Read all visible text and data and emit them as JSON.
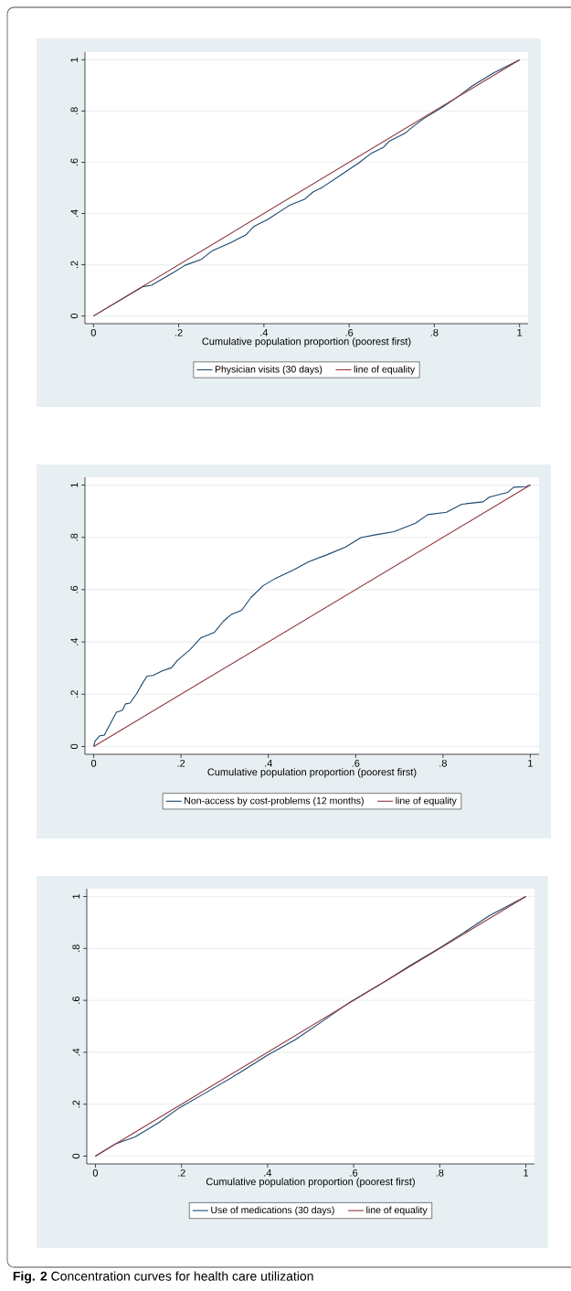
{
  "chart_data": [
    {
      "type": "line",
      "xlabel": "Cumulative population proportion (poorest first)",
      "xlim": [
        -0.02,
        1.02
      ],
      "ylim": [
        -0.03,
        1.03
      ],
      "xticks": [
        0,
        {
          "value": 0.2,
          "label": ".2"
        },
        {
          "value": 0.4,
          "label": ".4"
        },
        {
          "value": 0.6,
          "label": ".6"
        },
        {
          "value": 0.8,
          "label": ".8"
        },
        1
      ],
      "yticks": [
        0,
        {
          "value": 0.2,
          "label": ".2"
        },
        {
          "value": 0.4,
          "label": ".4"
        },
        {
          "value": 0.6,
          "label": ".6"
        },
        {
          "value": 0.8,
          "label": ".8"
        },
        1
      ],
      "grid": "y",
      "legend": "bottom",
      "series": [
        {
          "name": "Physician visits (30 days)",
          "color": "#1a476f",
          "x": [
            0,
            0.115,
            0.136,
            0.186,
            0.215,
            0.254,
            0.279,
            0.323,
            0.358,
            0.376,
            0.409,
            0.459,
            0.495,
            0.516,
            0.538,
            0.581,
            0.624,
            0.652,
            0.681,
            0.695,
            0.731,
            0.753,
            0.774,
            0.824,
            0.86,
            0.889,
            0.939,
            1
          ],
          "values": [
            0,
            0.114,
            0.12,
            0.168,
            0.198,
            0.222,
            0.255,
            0.287,
            0.317,
            0.349,
            0.377,
            0.431,
            0.455,
            0.485,
            0.503,
            0.551,
            0.599,
            0.635,
            0.659,
            0.683,
            0.713,
            0.743,
            0.769,
            0.82,
            0.862,
            0.898,
            0.949,
            1
          ]
        },
        {
          "name": "line of equality",
          "color": "#90353b",
          "x": [
            0,
            1
          ],
          "values": [
            0,
            1
          ]
        }
      ]
    },
    {
      "type": "line",
      "xlabel": "Cumulative population proportion (poorest first)",
      "xlim": [
        -0.02,
        1.02
      ],
      "ylim": [
        -0.03,
        1.03
      ],
      "xticks": [
        0,
        {
          "value": 0.2,
          "label": ".2"
        },
        {
          "value": 0.4,
          "label": ".4"
        },
        {
          "value": 0.6,
          "label": ".6"
        },
        {
          "value": 0.8,
          "label": ".8"
        },
        1
      ],
      "yticks": [
        0,
        {
          "value": 0.2,
          "label": ".2"
        },
        {
          "value": 0.4,
          "label": ".4"
        },
        {
          "value": 0.6,
          "label": ".6"
        },
        {
          "value": 0.8,
          "label": ".8"
        },
        1
      ],
      "grid": "y",
      "legend": "bottom",
      "series": [
        {
          "name": "Non-access by cost-problems (12 months)",
          "color": "#1a476f",
          "x": [
            0,
            0.003,
            0.014,
            0.024,
            0.052,
            0.066,
            0.073,
            0.083,
            0.098,
            0.108,
            0.122,
            0.136,
            0.157,
            0.178,
            0.192,
            0.22,
            0.245,
            0.276,
            0.297,
            0.315,
            0.339,
            0.36,
            0.388,
            0.416,
            0.458,
            0.493,
            0.535,
            0.577,
            0.612,
            0.646,
            0.688,
            0.737,
            0.765,
            0.808,
            0.843,
            0.892,
            0.906,
            0.948,
            0.962,
            0.99,
            1
          ],
          "values": [
            0,
            0.02,
            0.041,
            0.043,
            0.131,
            0.139,
            0.163,
            0.166,
            0.201,
            0.231,
            0.269,
            0.272,
            0.289,
            0.301,
            0.33,
            0.369,
            0.415,
            0.436,
            0.479,
            0.505,
            0.521,
            0.57,
            0.615,
            0.643,
            0.676,
            0.707,
            0.734,
            0.763,
            0.799,
            0.81,
            0.822,
            0.854,
            0.887,
            0.896,
            0.927,
            0.936,
            0.954,
            0.972,
            0.992,
            0.994,
            1
          ]
        },
        {
          "name": "line of equality",
          "color": "#90353b",
          "x": [
            0,
            1
          ],
          "values": [
            0,
            1
          ]
        }
      ]
    },
    {
      "type": "line",
      "xlabel": "Cumulative population proportion (poorest first)",
      "xlim": [
        -0.02,
        1.02
      ],
      "ylim": [
        -0.03,
        1.03
      ],
      "xticks": [
        0,
        {
          "value": 0.2,
          "label": ".2"
        },
        {
          "value": 0.4,
          "label": ".4"
        },
        {
          "value": 0.6,
          "label": ".6"
        },
        {
          "value": 0.8,
          "label": ".8"
        },
        1
      ],
      "yticks": [
        0,
        {
          "value": 0.2,
          "label": ".2"
        },
        {
          "value": 0.4,
          "label": ".4"
        },
        {
          "value": 0.6,
          "label": ".6"
        },
        {
          "value": 0.8,
          "label": ".8"
        },
        1
      ],
      "grid": "y",
      "legend": "bottom",
      "annotations": [
        "**Fig. 2** Concentration curves for health care utilization"
      ],
      "series": [
        {
          "name": "Use of medications (30 days)",
          "color": "#1a476f",
          "x": [
            0,
            0.046,
            0.092,
            0.145,
            0.195,
            0.251,
            0.336,
            0.4,
            0.464,
            0.527,
            0.591,
            0.676,
            0.732,
            0.8,
            0.853,
            0.916,
            1
          ],
          "values": [
            0,
            0.047,
            0.074,
            0.127,
            0.186,
            0.239,
            0.322,
            0.389,
            0.448,
            0.519,
            0.593,
            0.676,
            0.735,
            0.802,
            0.858,
            0.927,
            1
          ]
        },
        {
          "name": "line of equality",
          "color": "#90353b",
          "x": [
            0,
            1
          ],
          "values": [
            0,
            1
          ]
        }
      ]
    }
  ]
}
